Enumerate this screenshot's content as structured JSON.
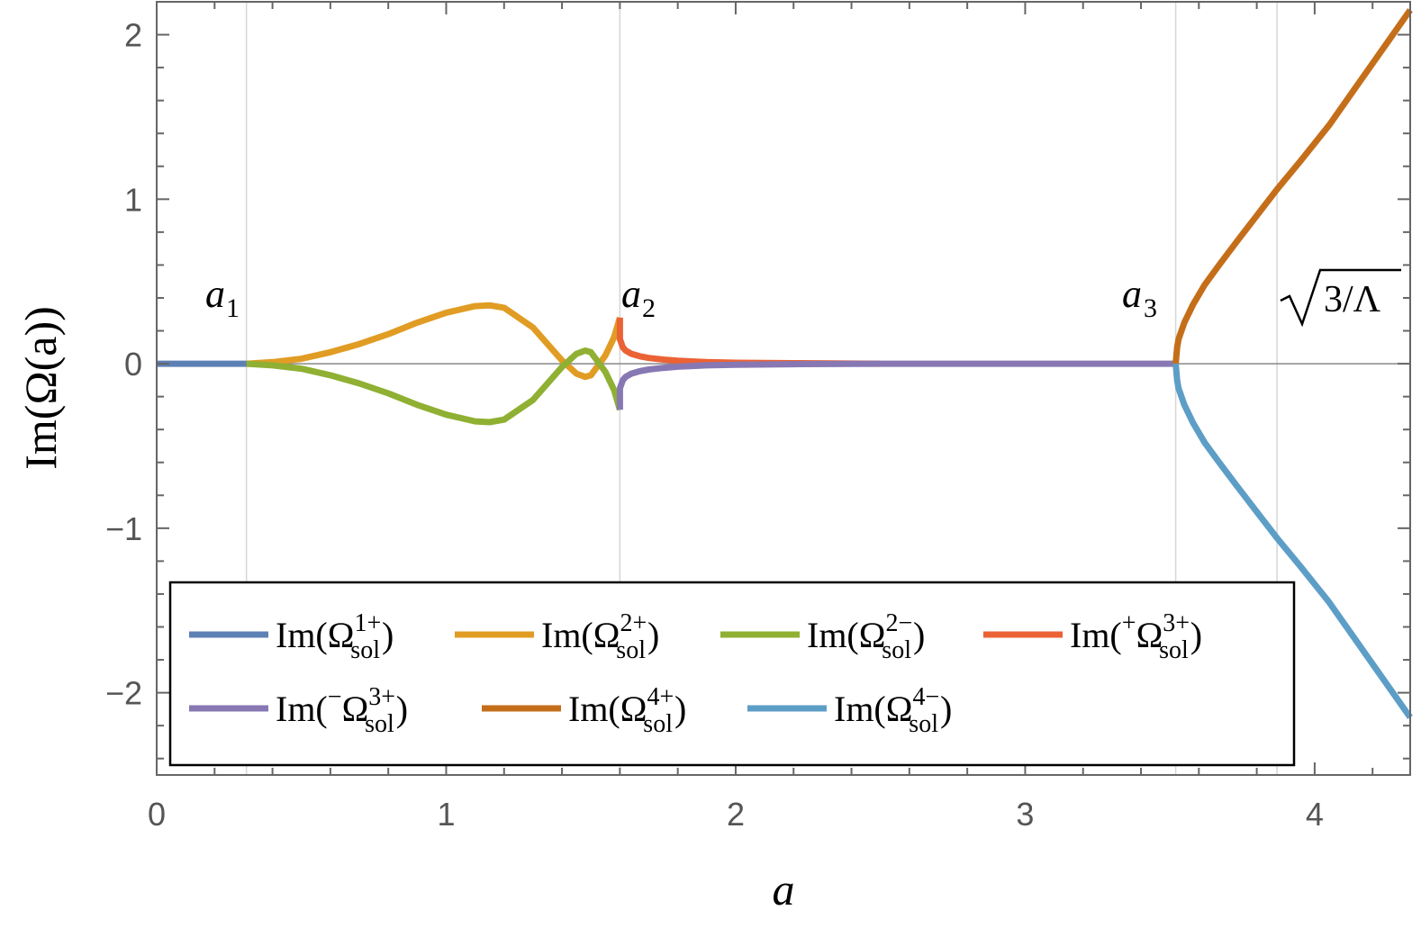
{
  "chart_data": {
    "type": "line",
    "xlabel": "a",
    "ylabel": "Im(Ω(a))",
    "xlim": [
      0,
      4.33
    ],
    "ylim": [
      -2.5,
      2.2
    ],
    "xticks": [
      0,
      1,
      2,
      3,
      4
    ],
    "yticks": [
      -2,
      -1,
      0,
      1,
      2
    ],
    "tick_labels_x": [
      "0",
      "1",
      "2",
      "3",
      "4"
    ],
    "tick_labels_y": [
      "−2",
      "−1",
      "0",
      "1",
      "2"
    ],
    "grid": "vertical lines at a1, a2, a3 and √(3/Λ)",
    "legend_placement": "bottom-left",
    "markers": [
      {
        "name": "a1",
        "x": 0.31
      },
      {
        "name": "a2",
        "x": 1.6
      },
      {
        "name": "a3",
        "x": 3.52
      },
      {
        "name": "sqrt(3/Lambda)",
        "x": 3.87
      }
    ],
    "series": [
      {
        "name": "Im(Ω_sol^{1+})",
        "color": "#5e81b5",
        "x": [
          0,
          0.31
        ],
        "y": [
          0,
          0
        ]
      },
      {
        "name": "Im(Ω_sol^{2+})",
        "color": "#e19c24",
        "x": [
          0.31,
          0.4,
          0.5,
          0.6,
          0.7,
          0.8,
          0.9,
          1.0,
          1.1,
          1.15,
          1.2,
          1.3,
          1.35,
          1.4,
          1.45,
          1.48,
          1.5,
          1.55,
          1.58,
          1.6
        ],
        "y": [
          0,
          0.01,
          0.03,
          0.07,
          0.12,
          0.18,
          0.25,
          0.31,
          0.35,
          0.355,
          0.34,
          0.22,
          0.12,
          0.02,
          -0.06,
          -0.08,
          -0.07,
          0.05,
          0.16,
          0.28
        ]
      },
      {
        "name": "Im(Ω_sol^{2−})",
        "color": "#8fb032",
        "x": [
          0.31,
          0.4,
          0.5,
          0.6,
          0.7,
          0.8,
          0.9,
          1.0,
          1.1,
          1.15,
          1.2,
          1.3,
          1.35,
          1.4,
          1.45,
          1.48,
          1.5,
          1.55,
          1.58,
          1.6
        ],
        "y": [
          0,
          -0.01,
          -0.03,
          -0.07,
          -0.12,
          -0.18,
          -0.25,
          -0.31,
          -0.35,
          -0.355,
          -0.34,
          -0.22,
          -0.12,
          -0.02,
          0.06,
          0.08,
          0.07,
          -0.05,
          -0.16,
          -0.28
        ]
      },
      {
        "name": "Im(⁺Ω_sol^{3+})",
        "color": "#eb6235",
        "x": [
          1.6,
          1.6,
          1.61,
          1.62,
          1.64,
          1.67,
          1.7,
          1.75,
          1.8,
          1.9,
          2.0,
          2.2,
          2.5
        ],
        "y": [
          0.28,
          0.15,
          0.1,
          0.08,
          0.06,
          0.045,
          0.035,
          0.025,
          0.018,
          0.01,
          0.006,
          0.003,
          0
        ]
      },
      {
        "name": "Im(⁻Ω_sol^{3+})",
        "color": "#8778b3",
        "x": [
          1.6,
          1.6,
          1.61,
          1.62,
          1.64,
          1.67,
          1.7,
          1.75,
          1.8,
          1.9,
          2.0,
          2.2,
          2.5,
          3.0,
          3.52
        ],
        "y": [
          -0.28,
          -0.15,
          -0.1,
          -0.08,
          -0.06,
          -0.045,
          -0.035,
          -0.025,
          -0.018,
          -0.01,
          -0.006,
          -0.003,
          0,
          0,
          0
        ]
      },
      {
        "name": "Im(Ω_sol^{4+})",
        "color": "#c56e1a",
        "x": [
          3.52,
          3.525,
          3.53,
          3.55,
          3.58,
          3.62,
          3.67,
          3.73,
          3.8,
          3.87,
          3.95,
          4.05,
          4.15,
          4.25,
          4.33
        ],
        "y": [
          0,
          0.1,
          0.15,
          0.25,
          0.36,
          0.48,
          0.6,
          0.74,
          0.9,
          1.06,
          1.23,
          1.45,
          1.7,
          1.95,
          2.15
        ]
      },
      {
        "name": "Im(Ω_sol^{4−})",
        "color": "#5d9ec7",
        "x": [
          3.52,
          3.525,
          3.53,
          3.55,
          3.58,
          3.62,
          3.67,
          3.73,
          3.8,
          3.87,
          3.95,
          4.05,
          4.15,
          4.25,
          4.33
        ],
        "y": [
          0,
          -0.1,
          -0.15,
          -0.25,
          -0.36,
          -0.48,
          -0.6,
          -0.74,
          -0.9,
          -1.06,
          -1.23,
          -1.45,
          -1.7,
          -1.95,
          -2.15
        ]
      }
    ],
    "legend": {
      "rows": [
        [
          {
            "series": 0,
            "prefix": "Im(",
            "sup_before": "",
            "base": "Ω",
            "sup": "1+",
            "sub": "sol",
            "suffix": ")"
          },
          {
            "series": 1,
            "prefix": "Im(",
            "sup_before": "",
            "base": "Ω",
            "sup": "2+",
            "sub": "sol",
            "suffix": ")"
          },
          {
            "series": 2,
            "prefix": "Im(",
            "sup_before": "",
            "base": "Ω",
            "sup": "2−",
            "sub": "sol",
            "suffix": ")"
          },
          {
            "series": 3,
            "prefix": "Im(",
            "sup_before": "+",
            "base": "Ω",
            "sup": "3+",
            "sub": "sol",
            "suffix": ")"
          }
        ],
        [
          {
            "series": 4,
            "prefix": "Im(",
            "sup_before": "−",
            "base": "Ω",
            "sup": "3+",
            "sub": "sol",
            "suffix": ")"
          },
          {
            "series": 5,
            "prefix": "Im(",
            "sup_before": "",
            "base": "Ω",
            "sup": "4+",
            "sub": "sol",
            "suffix": ")"
          },
          {
            "series": 6,
            "prefix": "Im(",
            "sup_before": "",
            "base": "Ω",
            "sup": "4−",
            "sub": "sol",
            "suffix": ")"
          }
        ]
      ]
    },
    "annotations": [
      {
        "name": "a1-label",
        "base": "a",
        "sub": "1"
      },
      {
        "name": "a2-label",
        "base": "a",
        "sub": "2"
      },
      {
        "name": "a3-label",
        "base": "a",
        "sub": "3"
      },
      {
        "name": "sqrt-label",
        "text": "3/Λ"
      }
    ]
  }
}
